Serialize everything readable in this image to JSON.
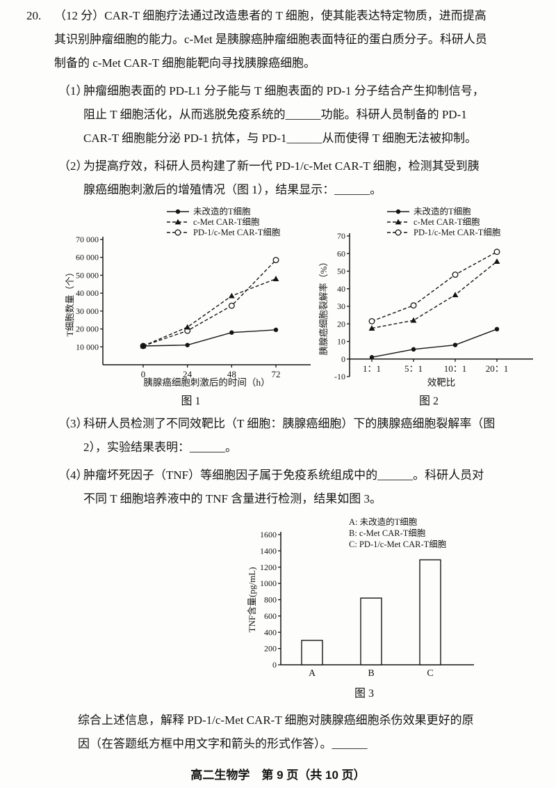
{
  "page": {
    "footer": "高二生物学　第 9 页（共 10 页）"
  },
  "question": {
    "number": "20.",
    "intro_lines": [
      "（12 分）CAR-T 细胞疗法通过改造患者的 T 细胞，使其能表达特定物质，进而提高",
      "其识别肿瘤细胞的能力。c-Met 是胰腺癌肿瘤细胞表面特征的蛋白质分子。科研人员",
      "制备的 c-Met CAR-T 细胞能靶向寻找胰腺癌细胞。"
    ],
    "parts": [
      {
        "label": "（1）",
        "lines": [
          "肿瘤细胞表面的 PD-L1 分子能与 T 细胞表面的 PD-1 分子结合产生抑制信号，",
          "阻止 T 细胞活化，从而逃脱免疫系统的______功能。科研人员制备的 PD-1",
          "CAR-T 细胞能分泌 PD-1 抗体，与 PD-1______从而使得 T 细胞无法被抑制。"
        ]
      },
      {
        "label": "（2）",
        "lines": [
          "为提高疗效，科研人员构建了新一代 PD-1/c-Met CAR-T 细胞，检测其受到胰",
          "腺癌细胞刺激后的增殖情况（图 1），结果显示：______。"
        ]
      },
      {
        "label": "（3）",
        "lines": [
          "科研人员检测了不同效靶比（T 细胞：胰腺癌细胞）下的胰腺癌细胞裂解率（图",
          "2），实验结果表明：______。"
        ]
      },
      {
        "label": "（4）",
        "lines": [
          "肿瘤坏死因子（TNF）等细胞因子属于免疫系统组成中的______。科研人员对",
          "不同 T 细胞培养液中的 TNF 含量进行检测，结果如图 3。"
        ]
      }
    ],
    "closing_lines": [
      "综合上述信息，解释 PD-1/c-Met CAR-T 细胞对胰腺癌细胞杀伤效果更好的原",
      "因（在答题纸方框中用文字和箭头的形式作答）。______"
    ]
  },
  "chart_data": [
    {
      "type": "line",
      "caption": "图 1",
      "x": [
        0,
        24,
        48,
        72
      ],
      "xtick_labels": [
        "0",
        "24",
        "48",
        "72"
      ],
      "xlabel": "胰腺癌细胞刺激后的时间（h）",
      "ylabel": "T细胞数量（个）",
      "ylim": [
        0,
        70000
      ],
      "baseline": 0,
      "yticks": [
        10000,
        20000,
        30000,
        40000,
        50000,
        60000,
        70000
      ],
      "ytick_labels": [
        "10 000",
        "20 000",
        "30 000",
        "40 000",
        "50 000",
        "60 000",
        "70 000"
      ],
      "grid": false,
      "legend_position": "top-right",
      "series": [
        {
          "name": "未改造的T细胞",
          "line": "solid",
          "marker": "dot",
          "values": [
            10500,
            11000,
            18000,
            19500
          ]
        },
        {
          "name": "c-Met CAR-T细胞",
          "line": "dashed",
          "marker": "tri",
          "values": [
            10500,
            21000,
            38500,
            48000
          ]
        },
        {
          "name": "PD-1/c-Met CAR-T细胞",
          "line": "dashed",
          "marker": "circle",
          "values": [
            10500,
            19000,
            33000,
            58500
          ]
        }
      ]
    },
    {
      "type": "line",
      "caption": "图 2",
      "categories": [
        "1：1",
        "5：1",
        "10：1",
        "20：1"
      ],
      "xlabel": "效靶比",
      "ylabel": "胰腺癌细胞裂解率（%）",
      "ylim": [
        -10,
        70
      ],
      "baseline": 0,
      "yticks": [
        -10,
        0,
        10,
        20,
        30,
        40,
        50,
        60,
        70
      ],
      "ytick_labels": [
        "-10",
        "0",
        "10",
        "20",
        "30",
        "40",
        "50",
        "60",
        "70"
      ],
      "grid": false,
      "legend_position": "top-right",
      "series": [
        {
          "name": "未改造的T细胞",
          "line": "solid",
          "marker": "dot",
          "values": [
            1,
            5.5,
            8,
            17
          ]
        },
        {
          "name": "c-Met CAR-T细胞",
          "line": "dashed",
          "marker": "tri",
          "values": [
            17.5,
            22,
            36.5,
            55.5
          ]
        },
        {
          "name": "PD-1/c-Met CAR-T细胞",
          "line": "dashed",
          "marker": "circle",
          "values": [
            21.5,
            30.5,
            48,
            61
          ]
        }
      ]
    },
    {
      "type": "bar",
      "caption": "图 3",
      "categories": [
        "A",
        "B",
        "C"
      ],
      "values": [
        300,
        820,
        1290
      ],
      "xlabel": "",
      "ylabel": "TNF含量(pg/mL)",
      "ylim": [
        0,
        1600
      ],
      "yticks": [
        0,
        200,
        400,
        600,
        800,
        1000,
        1200,
        1400,
        1600
      ],
      "ytick_labels": [
        "0",
        "200",
        "400",
        "600",
        "800",
        "1000",
        "1200",
        "1400",
        "1600"
      ],
      "grid": false,
      "legend_lines": [
        "A: 未改造的T细胞",
        "B: c-Met CAR-T细胞",
        "C: PD-1/c-Met CAR-T细胞"
      ],
      "legend_position": "top-right"
    }
  ]
}
